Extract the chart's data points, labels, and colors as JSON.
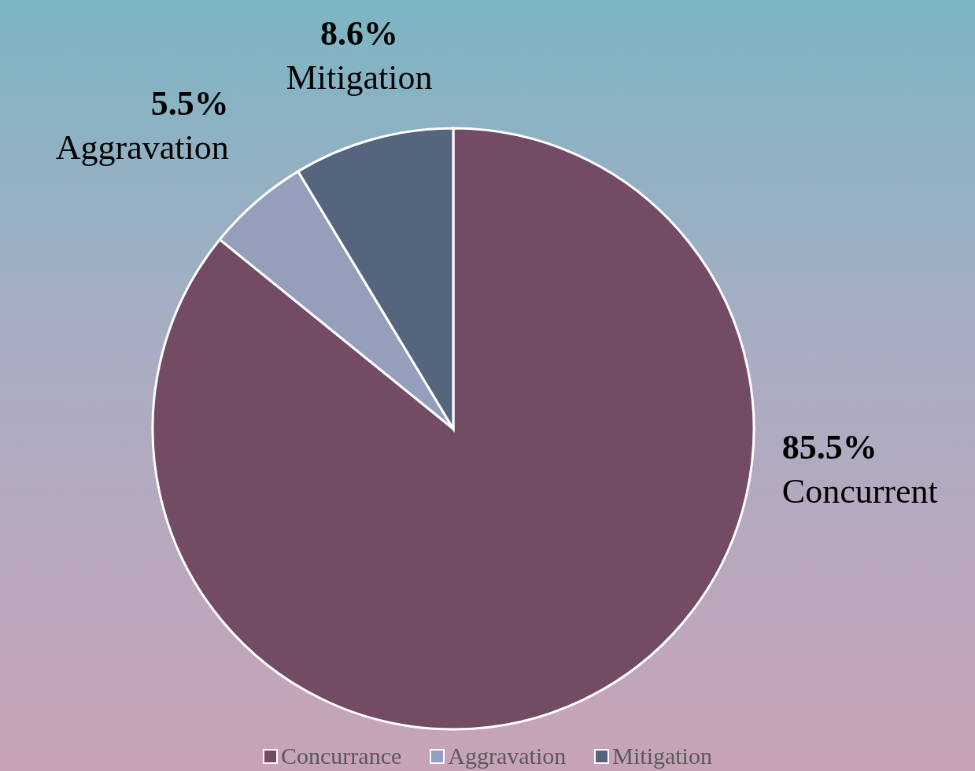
{
  "chart_data": {
    "type": "pie",
    "categories": [
      "Concurrance",
      "Aggravation",
      "Mitigation"
    ],
    "values": [
      85.5,
      5.5,
      8.6
    ],
    "colors": [
      "#734b64",
      "#959ebb",
      "#56657e"
    ],
    "value_labels": [
      "85.5%\nConcurrent",
      "5.5%\nAggravation",
      "8.6%\nMitigation"
    ],
    "legend": "bottom"
  }
}
